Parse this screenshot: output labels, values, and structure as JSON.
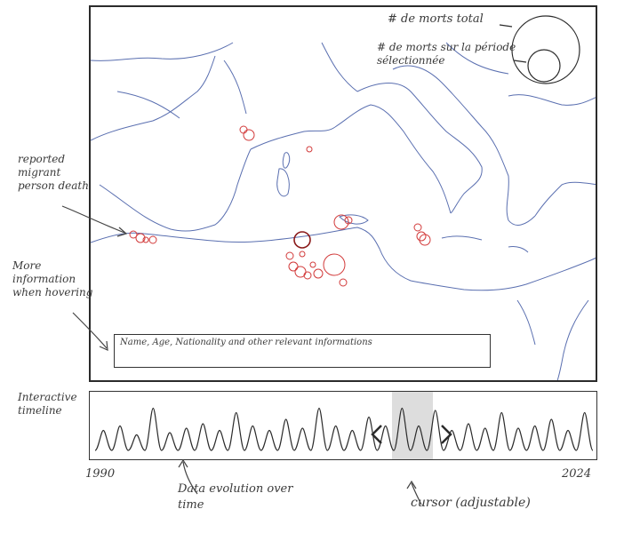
{
  "annotations": {
    "reported_death": "reported migrant person death",
    "hover_info": "More information when hovering",
    "timeline": "Interactive timeline",
    "data_evolution": "Data evolution over time",
    "cursor": "cursor (adjustable)"
  },
  "legend": {
    "total": "# de morts total",
    "period": "# de morts sur la période sélectionnée"
  },
  "info_box": {
    "text": "Name, Age, Nationality and other relevant informations"
  },
  "timeline": {
    "start_year": "1990",
    "end_year": "2024",
    "peaks": [
      0.45,
      0.55,
      0.35,
      0.95,
      0.4,
      0.5,
      0.6,
      0.45,
      0.85,
      0.55,
      0.45,
      0.7,
      0.5,
      0.95,
      0.55,
      0.45,
      0.75,
      0.55,
      0.95,
      0.55,
      0.9,
      0.45,
      0.6,
      0.5,
      0.85,
      0.5,
      0.55,
      0.7,
      0.45,
      0.85
    ]
  },
  "colors": {
    "coast": "#5a6fb0",
    "circle": "#d23a3a",
    "frame": "#2b2b2b",
    "cursor_band": "#dddddd"
  }
}
